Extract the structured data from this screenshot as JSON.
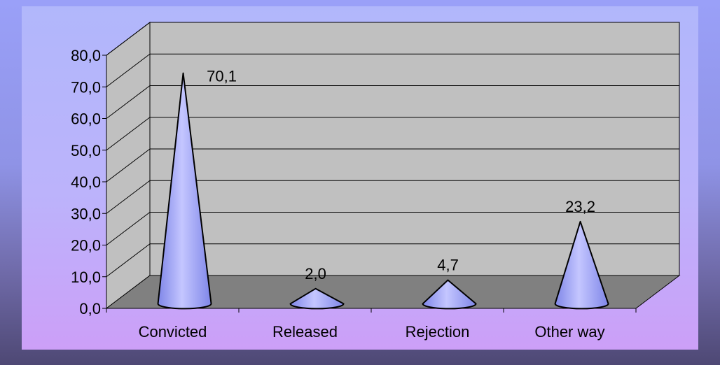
{
  "chart_data": {
    "type": "bar",
    "bar_shape": "cone-3d",
    "categories": [
      "Convicted",
      "Released",
      "Rejection",
      "Other way"
    ],
    "values": [
      70.1,
      2.0,
      4.7,
      23.2
    ],
    "data_labels": [
      "70,1",
      "2,0",
      "4,7",
      "23,2"
    ],
    "y_ticks": [
      "0,0",
      "10,0",
      "20,0",
      "30,0",
      "40,0",
      "50,0",
      "60,0",
      "70,0",
      "80,0"
    ],
    "ylim": [
      0,
      80
    ],
    "grid": true,
    "legend": false,
    "colors": {
      "wall": "#c0c0c0",
      "floor": "#808080",
      "cone_light": "#c4c6ff",
      "cone_dark": "#7f86e8",
      "frame_top": "#9aa0f8",
      "frame_bottom": "#4e4874"
    }
  }
}
